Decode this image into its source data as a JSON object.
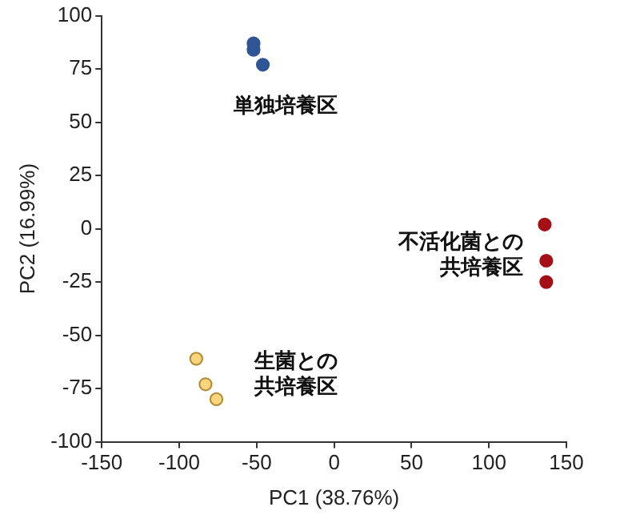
{
  "chart_data": {
    "type": "scatter",
    "xlabel": "PC1 (38.76%)",
    "ylabel": "PC2 (16.99%)",
    "xlim": [
      -150,
      150
    ],
    "xticks": [
      -150,
      -100,
      -50,
      0,
      50,
      100,
      150
    ],
    "ylim": [
      -100,
      100
    ],
    "yticks": [
      -100,
      -75,
      -50,
      -25,
      0,
      25,
      50,
      75,
      100
    ],
    "grid": false,
    "legend": false,
    "marker": "circle",
    "series": [
      {
        "name": "単独培養区",
        "color": "#2f5597",
        "x": [
          -52,
          -52,
          -46
        ],
        "values": [
          87,
          84,
          77
        ]
      },
      {
        "name": "不活化菌との共培養区",
        "color": "#a50f15",
        "x": [
          136,
          137,
          137
        ],
        "values": [
          2,
          -15,
          -25
        ]
      },
      {
        "name": "生菌との共培養区",
        "color": "#fdd47e",
        "x": [
          -89,
          -83,
          -76
        ],
        "values": [
          -61,
          -73,
          -80
        ]
      }
    ]
  }
}
